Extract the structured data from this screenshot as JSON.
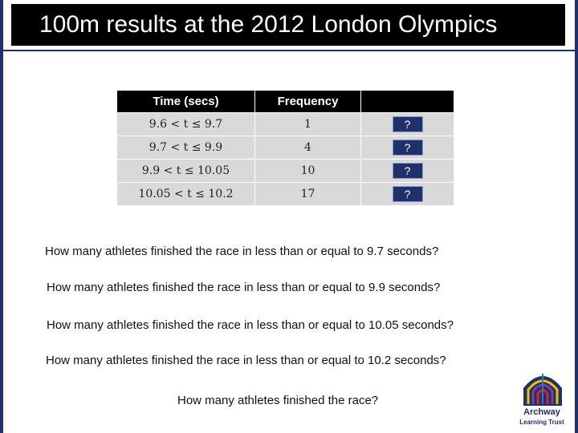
{
  "slide": {
    "title": "100m results at the 2012 London Olympics"
  },
  "table": {
    "headers": [
      "Time (secs)",
      "Frequency",
      ""
    ],
    "rows": [
      {
        "time": "9.6  <  t  ≤  9.7",
        "frequency": "1",
        "cumulative": "?"
      },
      {
        "time": "9.7  <  t  ≤  9.9",
        "frequency": "4",
        "cumulative": "?"
      },
      {
        "time": "9.9  <  t  ≤  10.05",
        "frequency": "10",
        "cumulative": "?"
      },
      {
        "time": "10.05  <  t  ≤  10.2",
        "frequency": "17",
        "cumulative": "?"
      }
    ]
  },
  "questions": [
    "How many athletes finished the race in less than or equal to 9.7 seconds?",
    "How many athletes finished the race in less than or equal to 9.9 seconds?",
    "How many athletes finished the race in less than or equal to 10.05 seconds?",
    "How many athletes finished the race in less than or equal to 10.2 seconds?",
    "How many athletes finished the race?"
  ],
  "logo": {
    "line1": "Archway",
    "line2": "Learning Trust",
    "colors": {
      "navy": "#20306a",
      "yellow": "#f2c200",
      "purple": "#7a3fa0",
      "red": "#d7262e",
      "blue": "#2d7ac2"
    }
  },
  "colors": {
    "title_bg": "#000000",
    "header_bg": "#000000",
    "cell_bg": "#d9d9d9",
    "accent": "#20306a"
  }
}
